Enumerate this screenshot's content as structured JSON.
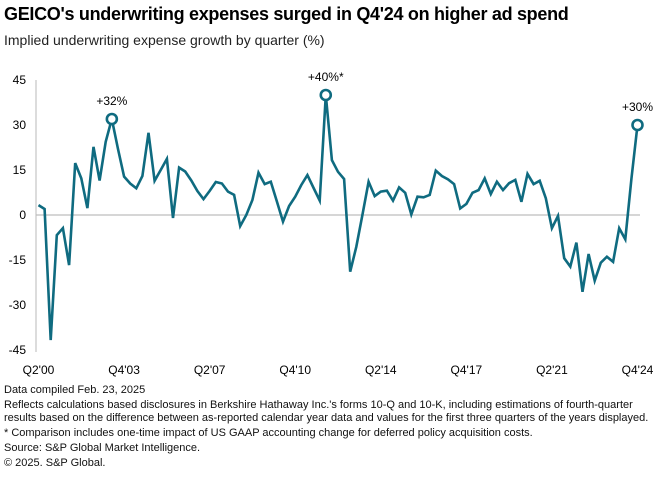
{
  "header": {
    "title": "GEICO's underwriting expenses surged in Q4'24 on higher ad spend",
    "subtitle": "Implied underwriting expense growth by quarter (%)"
  },
  "colors": {
    "line": "#0f6b80",
    "zero_line": "#bdbdbd",
    "axis": "#d0d0d0"
  },
  "chart_data": {
    "type": "line",
    "title": "GEICO's underwriting expenses surged in Q4'24 on higher ad spend",
    "subtitle": "Implied underwriting expense growth by quarter (%)",
    "xlabel": "",
    "ylabel": "",
    "ylim": [
      -45,
      45
    ],
    "yticks": [
      45,
      30,
      15,
      0,
      -15,
      -30,
      -45
    ],
    "xtick_labels": [
      {
        "label": "Q2'00",
        "index": 0
      },
      {
        "label": "Q4'03",
        "index": 14
      },
      {
        "label": "Q2'07",
        "index": 28
      },
      {
        "label": "Q4'10",
        "index": 42
      },
      {
        "label": "Q2'14",
        "index": 56
      },
      {
        "label": "Q4'17",
        "index": 70
      },
      {
        "label": "Q2'21",
        "index": 84
      },
      {
        "label": "Q4'24",
        "index": 98
      }
    ],
    "x_start": "Q2'00",
    "x_end": "Q4'24",
    "grid": false,
    "legend": "none",
    "series": [
      {
        "name": "Implied underwriting expense growth (%)",
        "values": [
          3.3,
          2,
          -41.7,
          -6.7,
          -4.4,
          -16.7,
          17.3,
          12.2,
          2.3,
          22.7,
          11.5,
          24.4,
          32,
          22,
          12.8,
          10.5,
          8.9,
          13,
          27.4,
          11.4,
          15,
          18.7,
          -1,
          15.8,
          14.5,
          11.5,
          8,
          5.3,
          8,
          11,
          10.5,
          7.8,
          6.7,
          -3.7,
          0,
          5,
          14.1,
          10.3,
          11.1,
          4.5,
          -2.2,
          3,
          6.1,
          10,
          13.3,
          9,
          4.8,
          40,
          18.3,
          14.4,
          12,
          -18.9,
          -10.6,
          0,
          11.1,
          6.3,
          7.8,
          8.1,
          4.8,
          9.2,
          7.4,
          0.2,
          6.1,
          5.9,
          6.7,
          14.8,
          13,
          11.9,
          10.3,
          2.2,
          3.7,
          7.4,
          8.3,
          12.2,
          7,
          11.1,
          8.3,
          10.6,
          11.7,
          4.4,
          13.7,
          10.3,
          11.4,
          5.6,
          -4.4,
          -0.3,
          -14.4,
          -17.2,
          -9.2,
          -25.6,
          -13,
          -21.9,
          -15.9,
          -13.9,
          -15.6,
          -4.4,
          -8.1,
          12,
          30
        ]
      }
    ],
    "annotations": [
      {
        "index": 12,
        "value": 32,
        "text": "+32%"
      },
      {
        "index": 47,
        "value": 40,
        "text": "+40%*"
      },
      {
        "index": 98,
        "value": 30,
        "text": "+30%"
      }
    ]
  },
  "footer": {
    "compiled": "Data compiled Feb. 23, 2025",
    "note": "Reflects calculations based disclosures in Berkshire Hathaway Inc.'s forms 10-Q and 10-K, including estimations of fourth-quarter results based on the difference between as-reported calendar year data and values for the first three quarters of the years displayed.",
    "footnote": "* Comparison includes one-time impact of US GAAP accounting change for deferred policy acquisition costs.",
    "source": "Source: S&P Global Market Intelligence.",
    "copyright": "© 2025. S&P Global."
  }
}
